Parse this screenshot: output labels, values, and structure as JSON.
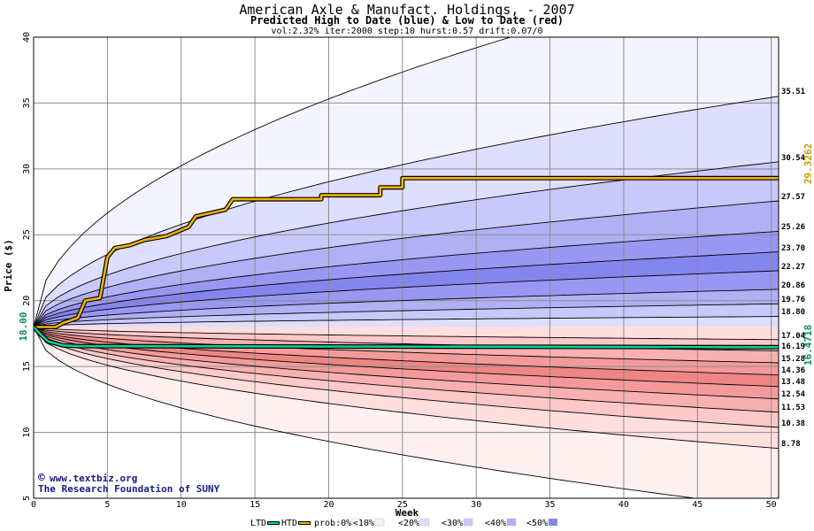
{
  "chart_data": {
    "type": "area",
    "title": "American Axle & Manufact. Holdings, - 2007",
    "subtitle": "Predicted High to Date (blue) &  Low to Date (red)",
    "params": "vol:2.32% iter:2000 step:10 hurst:0.57 drift:0.07/0",
    "xlabel": "Week",
    "ylabel": "Price ($)",
    "xlim": [
      0,
      50.5
    ],
    "ylim": [
      5,
      40
    ],
    "x_ticks": [
      0,
      5,
      10,
      15,
      20,
      25,
      30,
      35,
      40,
      45,
      50
    ],
    "y_ticks": [
      5,
      10,
      15,
      20,
      25,
      30,
      35,
      40
    ],
    "grid": true,
    "start_price_label": "18.00",
    "start_price": 18.0,
    "right_labels": [
      "35.51",
      "30.54",
      "27.57",
      "25.26",
      "23.70",
      "22.27",
      "20.86",
      "19.76",
      "18.80",
      "17.04",
      "16.19",
      "15.28",
      "14.36",
      "13.48",
      "12.54",
      "11.53",
      "10.38",
      "8.78"
    ],
    "upper_quantiles": [
      {
        "end": 45.5,
        "label": "",
        "color": "#f4f4ff"
      },
      {
        "end": 35.51,
        "label": "35.51",
        "color": "#dedeff"
      },
      {
        "end": 30.54,
        "label": "30.54",
        "color": "#c8c8fa"
      },
      {
        "end": 27.57,
        "label": "27.57",
        "color": "#b0b0f5"
      },
      {
        "end": 25.26,
        "label": "25.26",
        "color": "#9898f2"
      },
      {
        "end": 23.7,
        "label": "23.70",
        "color": "#8585ee"
      },
      {
        "end": 22.27,
        "label": "22.27",
        "color": "#9898f2"
      },
      {
        "end": 20.86,
        "label": "20.86",
        "color": "#b0b0f5"
      },
      {
        "end": 19.76,
        "label": "19.76",
        "color": "#c8c8fa"
      },
      {
        "end": 18.8,
        "label": "18.80",
        "color": "#dedeff"
      }
    ],
    "lower_quantiles": [
      {
        "end": 17.04,
        "label": "17.04",
        "color": "#ffdede"
      },
      {
        "end": 16.19,
        "label": "16.19",
        "color": "#fcc8c8"
      },
      {
        "end": 15.28,
        "label": "15.28",
        "color": "#f8b0b0"
      },
      {
        "end": 14.36,
        "label": "14.36",
        "color": "#f49a9a"
      },
      {
        "end": 13.48,
        "label": "13.48",
        "color": "#f08585"
      },
      {
        "end": 12.54,
        "label": "12.54",
        "color": "#f49a9a"
      },
      {
        "end": 11.53,
        "label": "11.53",
        "color": "#f8b0b0"
      },
      {
        "end": 10.38,
        "label": "10.38",
        "color": "#fcc8c8"
      },
      {
        "end": 8.78,
        "label": "8.78",
        "color": "#ffdede"
      },
      {
        "end": 4.2,
        "label": "",
        "color": "#fff0f0"
      }
    ],
    "series": [
      {
        "name": "HTD",
        "color": "#f0b400",
        "values": [
          [
            0,
            18.0
          ],
          [
            1.5,
            18.0
          ],
          [
            2,
            18.3
          ],
          [
            3,
            18.7
          ],
          [
            3.5,
            20.0
          ],
          [
            4.5,
            20.2
          ],
          [
            5,
            23.3
          ],
          [
            5.5,
            24.0
          ],
          [
            6.5,
            24.2
          ],
          [
            7.5,
            24.6
          ],
          [
            9,
            24.9
          ],
          [
            10.5,
            25.6
          ],
          [
            11,
            26.4
          ],
          [
            13,
            26.9
          ],
          [
            13.5,
            27.7
          ],
          [
            19.5,
            27.7
          ],
          [
            19.5,
            28.0
          ],
          [
            23.5,
            28.0
          ],
          [
            23.5,
            28.6
          ],
          [
            25,
            28.6
          ],
          [
            25,
            29.3
          ],
          [
            50.5,
            29.3
          ]
        ]
      },
      {
        "name": "LTD",
        "color": "#10d090",
        "values": [
          [
            0,
            18.0
          ],
          [
            0.5,
            17.4
          ],
          [
            1,
            16.9
          ],
          [
            2,
            16.6
          ],
          [
            3,
            16.55
          ],
          [
            50.5,
            16.47
          ]
        ]
      }
    ],
    "htd_value": "29.3262",
    "ltd_value": "16.4718",
    "legend": [
      {
        "label": "LTD",
        "color": "#10d090",
        "kind": "line"
      },
      {
        "label": "HTD",
        "color": "#f0b400",
        "kind": "line"
      },
      {
        "label": "prob:0%",
        "color": "#ffffff",
        "kind": "box"
      },
      {
        "label": "<10%",
        "color": "#f4f4ff",
        "kind": "box"
      },
      {
        "label": "<20%",
        "color": "#dedeff",
        "kind": "box"
      },
      {
        "label": "<30%",
        "color": "#c8c8fa",
        "kind": "box"
      },
      {
        "label": "<40%",
        "color": "#b0b0f5",
        "kind": "box"
      },
      {
        "label": "<50%",
        "color": "#8585ee",
        "kind": "box"
      }
    ],
    "legend_position": "bottom"
  },
  "watermark": {
    "line1": "www.textbiz.org",
    "copyright": "©",
    "line2": "The Research Foundation of SUNY",
    "color": "#1a1a8c"
  }
}
